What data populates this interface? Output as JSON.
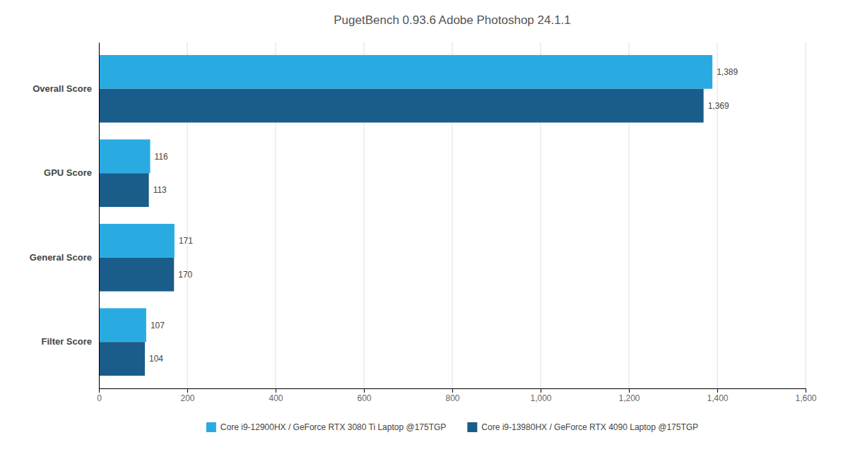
{
  "chart_data": {
    "type": "bar",
    "orientation": "horizontal",
    "title": "PugetBench  0.93.6 Adobe Photoshop 24.1.1",
    "categories": [
      "Filter Score",
      "General Score",
      "GPU Score",
      "Overall Score"
    ],
    "series": [
      {
        "name": "Core i9-12900HX / GeForce RTX 3080 Ti Laptop @175TGP",
        "color": "#29ABE2",
        "values": [
          107,
          171,
          116,
          1389
        ],
        "value_labels": [
          "107",
          "171",
          "116",
          "1,389"
        ]
      },
      {
        "name": "Core i9-13980HX / GeForce RTX 4090 Laptop @175TGP",
        "color": "#1A5C8A",
        "values": [
          104,
          170,
          113,
          1369
        ],
        "value_labels": [
          "104",
          "170",
          "113",
          "1,369"
        ]
      }
    ],
    "xlim": [
      0,
      1600
    ],
    "xticks": [
      0,
      200,
      400,
      600,
      800,
      {
        "value": 1000,
        "label": "1,000"
      },
      {
        "value": 1200,
        "label": "1,200"
      },
      {
        "value": 1400,
        "label": "1,400"
      },
      {
        "value": 1600,
        "label": "1,600"
      }
    ],
    "grid": true,
    "legend": "bottom",
    "data_labels": true
  }
}
